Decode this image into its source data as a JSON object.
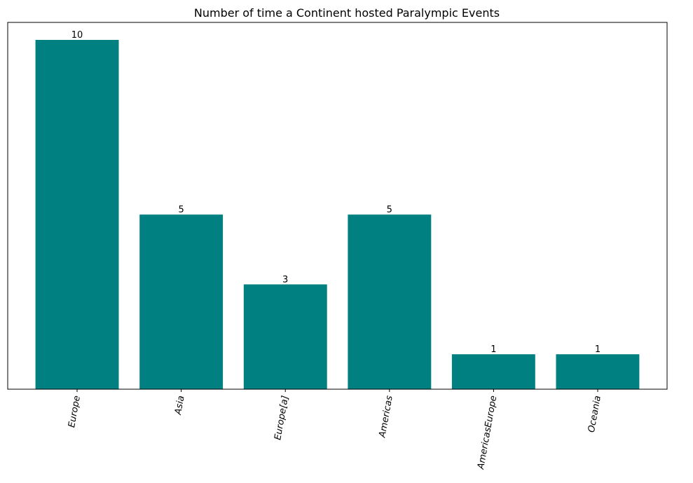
{
  "chart_data": {
    "type": "bar",
    "title": "Number of time a Continent hosted Paralympic Events",
    "xlabel": "",
    "ylabel": "",
    "categories": [
      "Europe",
      "Asia",
      "Europe[a]",
      "Americas",
      "AmericasEurope",
      "Oceania"
    ],
    "values": [
      10,
      5,
      3,
      5,
      1,
      1
    ],
    "data_labels": [
      "10",
      "5",
      "3",
      "5",
      "1",
      "1"
    ],
    "ylim": [
      0,
      10.5
    ],
    "bar_color": "#008080",
    "grid": false,
    "legend": "none",
    "y_ticks_visible": false,
    "x_tick_labels_style": "italic, rotated ~80 degrees"
  }
}
